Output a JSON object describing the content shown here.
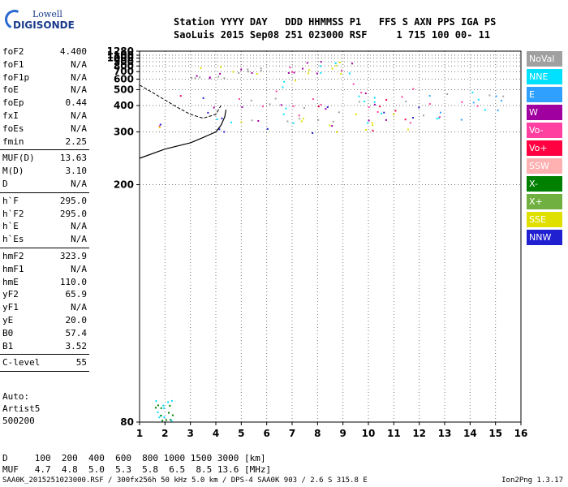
{
  "logo": {
    "line1": "Lowell",
    "line2": "DIGISONDE"
  },
  "header": {
    "line1": "Station YYYY DAY   DDD HHMMSS P1   FFS S AXN PPS IGA PS",
    "line2": "SaoLuis 2015 Sep08 251 023000 RSF     1 715 100 00- 11"
  },
  "params_group1": [
    {
      "k": "foF2",
      "v": "4.400"
    },
    {
      "k": "foF1",
      "v": "N/A"
    },
    {
      "k": "foF1p",
      "v": "N/A"
    },
    {
      "k": "foE",
      "v": "N/A"
    },
    {
      "k": "foEp",
      "v": "0.44"
    },
    {
      "k": "fxI",
      "v": "N/A"
    },
    {
      "k": "foEs",
      "v": "N/A"
    },
    {
      "k": "fmin",
      "v": "2.25"
    }
  ],
  "params_group2": [
    {
      "k": "MUF(D)",
      "v": "13.63"
    },
    {
      "k": "M(D)",
      "v": "3.10"
    },
    {
      "k": "D",
      "v": "N/A"
    }
  ],
  "params_group3": [
    {
      "k": "h`F",
      "v": "295.0"
    },
    {
      "k": "h`F2",
      "v": "295.0"
    },
    {
      "k": "h`E",
      "v": "N/A"
    },
    {
      "k": "h`Es",
      "v": "N/A"
    }
  ],
  "params_group4": [
    {
      "k": "hmF2",
      "v": "323.9"
    },
    {
      "k": "hmF1",
      "v": "N/A"
    },
    {
      "k": "hmE",
      "v": "110.0"
    },
    {
      "k": "yF2",
      "v": "65.9"
    },
    {
      "k": "yF1",
      "v": "N/A"
    },
    {
      "k": "yE",
      "v": "20.0"
    },
    {
      "k": "B0",
      "v": "57.4"
    },
    {
      "k": "B1",
      "v": "3.52"
    }
  ],
  "params_group5": [
    {
      "k": "C-level",
      "v": "55"
    }
  ],
  "auto": {
    "line1": "Auto:",
    "line2": "Artist5",
    "line3": "500200"
  },
  "legend": [
    {
      "label": "NoVal",
      "color": "#a0a0a0"
    },
    {
      "label": "NNE",
      "color": "#00e0ff"
    },
    {
      "label": "E",
      "color": "#30a0ff"
    },
    {
      "label": "W",
      "color": "#a000a0"
    },
    {
      "label": "Vo-",
      "color": "#ff40a0"
    },
    {
      "label": "Vo+",
      "color": "#ff0040"
    },
    {
      "label": "SSW",
      "color": "#ffb0b0"
    },
    {
      "label": "X-",
      "color": "#008000"
    },
    {
      "label": "X+",
      "color": "#70b040"
    },
    {
      "label": "SSE",
      "color": "#e0e000"
    },
    {
      "label": "NNW",
      "color": "#2020d0"
    }
  ],
  "muf_table": {
    "d_line": "D     100  200  400  600  800 1000 1500 3000 [km]",
    "muf_line": "MUF   4.7  4.8  5.0  5.3  5.8  6.5  8.5 13.6 [MHz]"
  },
  "footer": {
    "left": "SAA0K_2015251023000.RSF / 300fx256h 50 kHz 5.0 km / DPS-4 SAA0K 903 / 2.6 S 315.8 E",
    "right": "Ion2Png 1.3.17"
  },
  "chart_data": {
    "type": "scatter",
    "x_ticks": [
      1,
      2,
      3,
      4,
      5,
      6,
      7,
      8,
      9,
      10,
      11,
      12,
      13,
      14,
      15,
      16
    ],
    "y_ticks": [
      80,
      200,
      300,
      400,
      500,
      600,
      700,
      800,
      900,
      1000,
      1100,
      1280
    ],
    "xlim": [
      1,
      16
    ],
    "ylim": [
      80,
      1280
    ],
    "y_scale": "reciprocal",
    "grid": "dotted",
    "legend_position": "right",
    "echo_regions": [
      {
        "fmin": 1.7,
        "fmax": 12.0,
        "hmin": 295,
        "hmax": 480,
        "color_mix": [
          "Vo+",
          "Vo-",
          "W",
          "SSE",
          "NNW",
          "NNE"
        ]
      },
      {
        "fmin": 4.5,
        "fmax": 11.8,
        "hmin": 330,
        "hmax": 600,
        "color_mix": [
          "SSE",
          "Vo-",
          "NNE",
          "NoVal"
        ]
      },
      {
        "fmin": 12.0,
        "fmax": 15.3,
        "hmin": 340,
        "hmax": 510,
        "color_mix": [
          "NNE",
          "E",
          "Vo-",
          "NoVal"
        ]
      },
      {
        "fmin": 3.0,
        "fmax": 5.8,
        "hmin": 620,
        "hmax": 840,
        "color_mix": [
          "W",
          "SSE",
          "NoVal"
        ]
      },
      {
        "fmin": 6.8,
        "fmax": 9.5,
        "hmin": 680,
        "hmax": 950,
        "color_mix": [
          "W",
          "SSE",
          "NNE",
          "Vo-"
        ]
      },
      {
        "fmin": 1.6,
        "fmax": 2.3,
        "hmin": 80,
        "hmax": 85,
        "color_mix": [
          "X-",
          "NNE"
        ]
      }
    ],
    "profile_curve": {
      "points": [
        [
          1,
          240
        ],
        [
          2,
          258
        ],
        [
          3,
          272
        ],
        [
          3.5,
          285
        ],
        [
          4,
          300
        ],
        [
          4.2,
          320
        ],
        [
          4.35,
          350
        ],
        [
          4.4,
          380
        ]
      ]
    },
    "trace_curve": {
      "points": [
        [
          1,
          540
        ],
        [
          1.5,
          480
        ],
        [
          2,
          430
        ],
        [
          2.5,
          390
        ],
        [
          3,
          360
        ],
        [
          3.5,
          345
        ],
        [
          4,
          360
        ],
        [
          4.2,
          400
        ]
      ]
    }
  }
}
